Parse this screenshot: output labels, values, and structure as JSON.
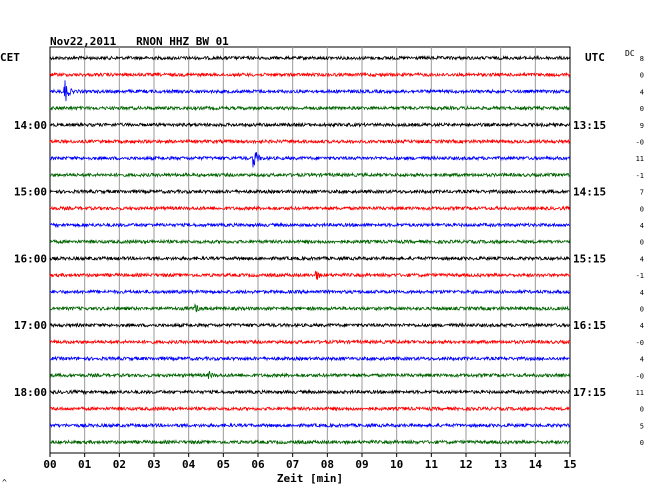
{
  "header": {
    "title": "Nov22,2011   RNON HHZ BW 01",
    "left_zone": "CET",
    "right_zone": "UTC",
    "dc_label": "DC",
    "corner_mark": "^"
  },
  "chart_data": {
    "type": "line",
    "title": "Nov22,2011   RNON HHZ BW 01",
    "xlabel": "Zeit [min]",
    "xlim": [
      0,
      15
    ],
    "x_ticks": [
      "00",
      "01",
      "02",
      "03",
      "04",
      "05",
      "06",
      "07",
      "08",
      "09",
      "10",
      "11",
      "12",
      "13",
      "14",
      "15"
    ],
    "grid": true,
    "colors": [
      "#000000",
      "#ff0000",
      "#0000ff",
      "#006400"
    ],
    "left_time_labels": [
      {
        "row": 4,
        "text": "14:00"
      },
      {
        "row": 8,
        "text": "15:00"
      },
      {
        "row": 12,
        "text": "16:00"
      },
      {
        "row": 16,
        "text": "17:00"
      },
      {
        "row": 20,
        "text": "18:00"
      }
    ],
    "right_time_labels": [
      {
        "row": 4,
        "text": "13:15"
      },
      {
        "row": 8,
        "text": "14:15"
      },
      {
        "row": 12,
        "text": "15:15"
      },
      {
        "row": 16,
        "text": "16:15"
      },
      {
        "row": 20,
        "text": "17:15"
      }
    ],
    "dc_offsets": [
      "8",
      "0",
      "4",
      "0",
      "9",
      "-0",
      "11",
      "-1",
      "7",
      "0",
      "4",
      "0",
      "4",
      "-1",
      "4",
      "0",
      "4",
      "-0",
      "4",
      "-0",
      "11",
      "0",
      "5",
      "0"
    ],
    "events": [
      {
        "row": 2,
        "minute": 0.45,
        "amplitude": 1.0
      },
      {
        "row": 6,
        "minute": 5.9,
        "amplitude": 0.9
      },
      {
        "row": 13,
        "minute": 7.7,
        "amplitude": 0.35
      },
      {
        "row": 15,
        "minute": 4.2,
        "amplitude": 0.35
      },
      {
        "row": 19,
        "minute": 4.6,
        "amplitude": 0.25
      }
    ]
  }
}
